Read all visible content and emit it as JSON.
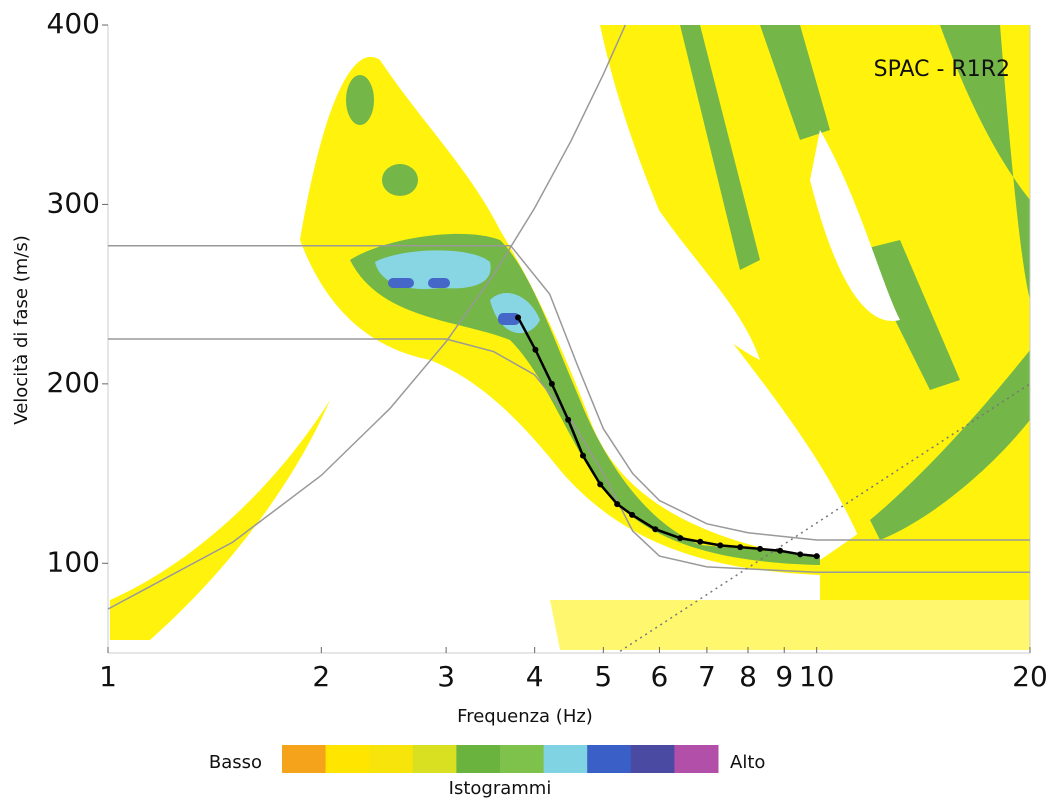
{
  "chart_data": {
    "type": "line",
    "xscale": "log",
    "annotation": "SPAC - R1R2",
    "xlabel": "Frequenza (Hz)",
    "ylabel": "Velocità di fase (m/s)",
    "xlim": [
      1,
      20
    ],
    "ylim": [
      50,
      400
    ],
    "xticks": [
      1,
      2,
      3,
      4,
      5,
      6,
      7,
      8,
      9,
      10,
      20
    ],
    "yticks": [
      100,
      200,
      300,
      400
    ],
    "series": [
      {
        "color": "#999999",
        "x": [
          1,
          1.5,
          2,
          2.5,
          3,
          3.5,
          4,
          4.5,
          5,
          5.37
        ],
        "values": [
          74.5,
          111.8,
          149,
          186.3,
          223.5,
          260.8,
          298,
          335.3,
          372.5,
          400
        ]
      },
      {
        "color": "#999999",
        "x": [
          1,
          3.7,
          4.2,
          4.6,
          5.0,
          5.5,
          6,
          7,
          8,
          10,
          20
        ],
        "values": [
          277,
          277,
          250,
          210,
          175,
          150,
          135,
          122,
          117,
          113,
          113
        ]
      },
      {
        "color": "#999999",
        "x": [
          1,
          3.0,
          3.5,
          4.0,
          4.5,
          5,
          5.5,
          6,
          7,
          10,
          20
        ],
        "values": [
          225,
          225,
          218,
          205,
          180,
          150,
          118,
          104,
          98,
          95,
          95
        ]
      },
      {
        "color": "#777777",
        "dash": true,
        "x": [
          5.28,
          20
        ],
        "values": [
          51,
          200
        ]
      },
      {
        "color": "#000000",
        "markers": true,
        "x": [
          3.79,
          4.01,
          4.23,
          4.46,
          4.68,
          4.95,
          5.23,
          5.49,
          5.92,
          6.42,
          6.85,
          7.31,
          7.8,
          8.32,
          8.88,
          9.48,
          10
        ],
        "values": [
          237,
          219,
          200,
          180,
          160,
          144,
          133,
          127,
          119,
          114,
          112,
          110,
          109,
          108,
          107,
          105,
          104
        ]
      }
    ],
    "colorbar": {
      "low_label": "Basso",
      "high_label": "Alto",
      "title": "Istogrammi",
      "colors": [
        "#f5a31a",
        "#ffe500",
        "#f6e40a",
        "#d9e021",
        "#6bb33f",
        "#7fc24b",
        "#80d3e3",
        "#3a5fc6",
        "#4b4aa2",
        "#b14fa9"
      ]
    }
  }
}
